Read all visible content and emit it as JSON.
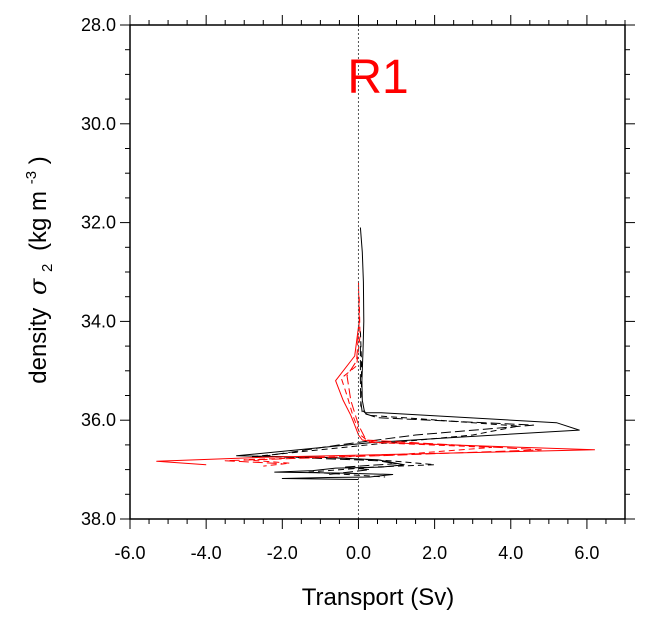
{
  "chart_data": {
    "type": "line",
    "panel_label": "R1",
    "panel_label_color": "#ff0000",
    "xlabel": "Transport (Sv)",
    "ylabel": "density",
    "ylabel_symbol": "σ",
    "ylabel_subscript": "2",
    "ylabel_units": "(kg m",
    "ylabel_units_exp": "-3",
    "ylabel_units_close": ")",
    "xlim": [
      -6.0,
      7.0
    ],
    "ylim": [
      28.0,
      38.0
    ],
    "y_inverted": true,
    "x_ticks": [
      -6.0,
      -4.0,
      -2.0,
      0.0,
      2.0,
      4.0,
      6.0
    ],
    "x_tick_labels": [
      "-6.0",
      "-4.0",
      "-2.0",
      "0.0",
      "2.0",
      "4.0",
      "6.0"
    ],
    "y_ticks": [
      28.0,
      30.0,
      32.0,
      34.0,
      36.0,
      38.0
    ],
    "y_tick_labels": [
      "28.0",
      "30.0",
      "32.0",
      "34.0",
      "36.0",
      "38.0"
    ],
    "grid": false,
    "zero_line": {
      "x": 0.0,
      "style": "dotted",
      "color": "#555555"
    },
    "series": [
      {
        "color": "#000000",
        "dash": "solid",
        "x": [
          0.05,
          0.1,
          0.13,
          0.14,
          0.12,
          0.09,
          0.1,
          0.15,
          0.18,
          0.6,
          5.2,
          5.8,
          2.5,
          0.4,
          -3.2,
          -1.0,
          0.5,
          1.2,
          0.6,
          -0.6,
          -1.2,
          -2.2,
          -0.4,
          0.9,
          0.3,
          -0.8,
          -2.0,
          0.0
        ],
        "y": [
          32.1,
          32.6,
          33.2,
          34.0,
          34.6,
          35.2,
          35.6,
          35.8,
          35.85,
          35.85,
          36.05,
          36.2,
          36.35,
          36.45,
          36.72,
          36.75,
          36.8,
          36.9,
          36.95,
          36.97,
          37.02,
          37.05,
          37.07,
          37.1,
          37.15,
          37.16,
          37.18,
          37.2
        ]
      },
      {
        "color": "#000000",
        "dash": "dashed",
        "x": [
          0.05,
          0.08,
          0.08,
          0.06,
          0.1,
          0.25,
          1.2,
          4.2,
          3.0,
          0.5,
          -2.8,
          -0.7,
          0.8,
          2.0,
          0.4,
          -1.3,
          -0.3,
          0.7
        ],
        "y": [
          34.2,
          34.8,
          35.3,
          35.7,
          35.8,
          35.9,
          35.95,
          36.12,
          36.3,
          36.48,
          36.74,
          36.76,
          36.82,
          36.9,
          36.95,
          37.05,
          37.1,
          37.15
        ]
      },
      {
        "color": "#000000",
        "dash": "long-dash",
        "x": [
          0.05,
          0.05,
          0.06,
          0.1,
          0.5,
          4.6,
          1.5,
          -0.5,
          -2.5,
          0.5,
          1.0,
          -0.4,
          0.3,
          -0.8
        ],
        "y": [
          34.5,
          35.2,
          35.6,
          35.85,
          35.95,
          36.1,
          36.3,
          36.5,
          36.73,
          36.82,
          36.88,
          36.95,
          37.0,
          37.1
        ]
      },
      {
        "color": "#ff0000",
        "dash": "solid",
        "x": [
          0.0,
          0.02,
          -0.1,
          -0.6,
          -0.4,
          -0.2,
          -0.1,
          0.0,
          0.1,
          0.5,
          6.2,
          -2.5,
          -5.3,
          -4.0
        ],
        "y": [
          33.2,
          34.0,
          34.7,
          35.2,
          35.6,
          35.9,
          36.1,
          36.3,
          36.4,
          36.45,
          36.6,
          36.75,
          36.83,
          36.9
        ]
      },
      {
        "color": "#ff0000",
        "dash": "dashed",
        "x": [
          0.02,
          0.04,
          -0.05,
          -0.45,
          -0.3,
          -0.15,
          0.05,
          0.3,
          3.5,
          1.0,
          -3.0,
          -1.8,
          -2.5
        ],
        "y": [
          33.5,
          34.3,
          34.9,
          35.15,
          35.5,
          35.9,
          36.3,
          36.45,
          36.55,
          36.7,
          36.8,
          36.87,
          36.93
        ]
      },
      {
        "color": "#ff0000",
        "dash": "long-dash",
        "x": [
          0.02,
          -0.05,
          -0.3,
          -0.2,
          0.0,
          0.2,
          2.5,
          4.8,
          0.5,
          -3.5,
          -2.0
        ],
        "y": [
          34.0,
          34.8,
          35.1,
          35.6,
          36.1,
          36.4,
          36.5,
          36.6,
          36.72,
          36.82,
          36.88
        ]
      }
    ]
  }
}
